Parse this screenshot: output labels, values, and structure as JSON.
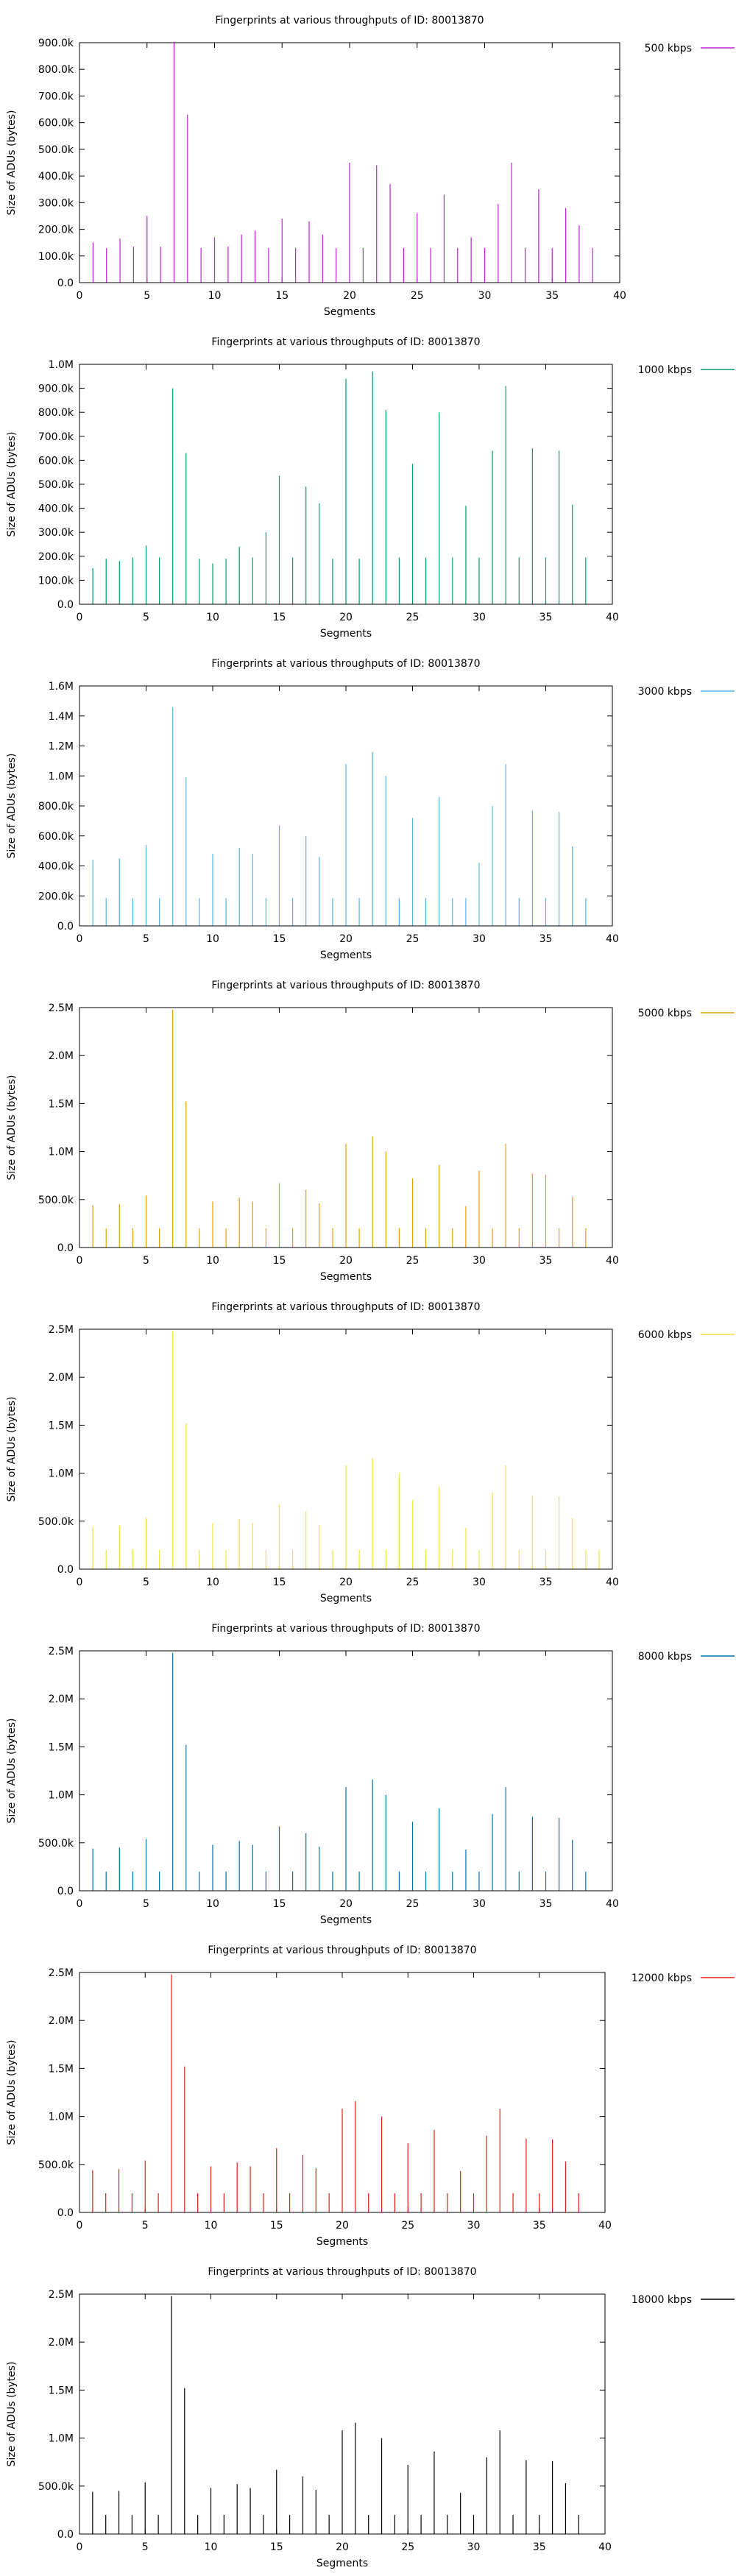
{
  "chart_data": [
    {
      "type": "impulse",
      "title": "Fingerprints at various throughputs of ID: 80013870",
      "xlabel": "Segments",
      "ylabel": "Size of ADUs (bytes)",
      "xlim": [
        0,
        40
      ],
      "xticks": [
        0,
        5,
        10,
        15,
        20,
        25,
        30,
        35,
        40
      ],
      "xtick_labels": [
        "0",
        "5",
        "10",
        "15",
        "20",
        "25",
        "30",
        "35",
        "40"
      ],
      "ylim": [
        0,
        900000
      ],
      "yticks": [
        0,
        100000,
        200000,
        300000,
        400000,
        500000,
        600000,
        700000,
        800000,
        900000
      ],
      "ytick_labels": [
        "0.0",
        "100.0k",
        "200.0k",
        "300.0k",
        "400.0k",
        "500.0k",
        "600.0k",
        "700.0k",
        "800.0k",
        "900.0k"
      ],
      "legend_position": "outside-right",
      "series": [
        {
          "name": "500 kbps",
          "color": "#c020d8",
          "x": [
            1,
            2,
            3,
            4,
            5,
            6,
            7,
            8,
            9,
            10,
            11,
            12,
            13,
            14,
            15,
            16,
            17,
            18,
            19,
            20,
            21,
            22,
            23,
            24,
            25,
            26,
            27,
            28,
            29,
            30,
            31,
            32,
            33,
            34,
            35,
            36,
            37,
            38
          ],
          "values": [
            150000,
            130000,
            165000,
            135000,
            250000,
            135000,
            900000,
            630000,
            130000,
            170000,
            135000,
            180000,
            195000,
            130000,
            240000,
            130000,
            230000,
            180000,
            130000,
            450000,
            130000,
            440000,
            370000,
            130000,
            260000,
            130000,
            330000,
            130000,
            170000,
            130000,
            295000,
            450000,
            130000,
            350000,
            130000,
            280000,
            215000,
            130000
          ]
        }
      ]
    },
    {
      "type": "impulse",
      "title": "Fingerprints at various throughputs of ID: 80013870",
      "xlabel": "Segments",
      "ylabel": "Size of ADUs (bytes)",
      "xlim": [
        0,
        40
      ],
      "xticks": [
        0,
        5,
        10,
        15,
        20,
        25,
        30,
        35,
        40
      ],
      "xtick_labels": [
        "0",
        "5",
        "10",
        "15",
        "20",
        "25",
        "30",
        "35",
        "40"
      ],
      "ylim": [
        0,
        1000000
      ],
      "yticks": [
        0,
        100000,
        200000,
        300000,
        400000,
        500000,
        600000,
        700000,
        800000,
        900000,
        1000000
      ],
      "ytick_labels": [
        "0.0",
        "100.0k",
        "200.0k",
        "300.0k",
        "400.0k",
        "500.0k",
        "600.0k",
        "700.0k",
        "800.0k",
        "900.0k",
        "1.0M"
      ],
      "legend_position": "outside-right",
      "series": [
        {
          "name": "1000 kbps",
          "color": "#009e73",
          "x": [
            1,
            2,
            3,
            4,
            5,
            6,
            7,
            8,
            9,
            10,
            11,
            12,
            13,
            14,
            15,
            16,
            17,
            18,
            19,
            20,
            21,
            22,
            23,
            24,
            25,
            26,
            27,
            28,
            29,
            30,
            31,
            32,
            33,
            34,
            35,
            36,
            37,
            38
          ],
          "values": [
            150000,
            190000,
            180000,
            195000,
            245000,
            195000,
            900000,
            630000,
            190000,
            170000,
            190000,
            240000,
            195000,
            300000,
            535000,
            195000,
            490000,
            420000,
            190000,
            940000,
            190000,
            970000,
            810000,
            195000,
            585000,
            195000,
            800000,
            195000,
            410000,
            195000,
            640000,
            910000,
            195000,
            650000,
            195000,
            640000,
            415000,
            195000
          ]
        }
      ]
    },
    {
      "type": "impulse",
      "title": "Fingerprints at various throughputs of ID: 80013870",
      "xlabel": "Segments",
      "ylabel": "Size of ADUs (bytes)",
      "xlim": [
        0,
        40
      ],
      "xticks": [
        0,
        5,
        10,
        15,
        20,
        25,
        30,
        35,
        40
      ],
      "xtick_labels": [
        "0",
        "5",
        "10",
        "15",
        "20",
        "25",
        "30",
        "35",
        "40"
      ],
      "ylim": [
        0,
        1600000
      ],
      "yticks": [
        0,
        200000,
        400000,
        600000,
        800000,
        1000000,
        1200000,
        1400000,
        1600000
      ],
      "ytick_labels": [
        "0.0",
        "200.0k",
        "400.0k",
        "600.0k",
        "800.0k",
        "1.0M",
        "1.2M",
        "1.4M",
        "1.6M"
      ],
      "legend_position": "outside-right",
      "series": [
        {
          "name": "3000 kbps",
          "color": "#56b4e9",
          "x": [
            1,
            2,
            3,
            4,
            5,
            6,
            7,
            8,
            9,
            10,
            11,
            12,
            13,
            14,
            15,
            16,
            17,
            18,
            19,
            20,
            21,
            22,
            23,
            24,
            25,
            26,
            27,
            28,
            29,
            30,
            31,
            32,
            33,
            34,
            35,
            36,
            37,
            38
          ],
          "values": [
            440000,
            185000,
            450000,
            185000,
            540000,
            185000,
            1460000,
            990000,
            185000,
            480000,
            185000,
            520000,
            480000,
            185000,
            670000,
            185000,
            600000,
            460000,
            185000,
            1080000,
            185000,
            1160000,
            1000000,
            185000,
            720000,
            185000,
            860000,
            185000,
            185000,
            420000,
            800000,
            1080000,
            185000,
            770000,
            185000,
            760000,
            530000,
            185000
          ]
        }
      ]
    },
    {
      "type": "impulse",
      "title": "Fingerprints at various throughputs of ID: 80013870",
      "xlabel": "Segments",
      "ylabel": "Size of ADUs (bytes)",
      "xlim": [
        0,
        40
      ],
      "xticks": [
        0,
        5,
        10,
        15,
        20,
        25,
        30,
        35,
        40
      ],
      "xtick_labels": [
        "0",
        "5",
        "10",
        "15",
        "20",
        "25",
        "30",
        "35",
        "40"
      ],
      "ylim": [
        0,
        2500000
      ],
      "yticks": [
        0,
        500000,
        1000000,
        1500000,
        2000000,
        2500000
      ],
      "ytick_labels": [
        "0.0",
        "500.0k",
        "1.0M",
        "1.5M",
        "2.0M",
        "2.5M"
      ],
      "legend_position": "outside-right",
      "series": [
        {
          "name": "5000 kbps",
          "color": "#e69f00",
          "x": [
            1,
            2,
            3,
            4,
            5,
            6,
            7,
            8,
            9,
            10,
            11,
            12,
            13,
            14,
            15,
            16,
            17,
            18,
            19,
            20,
            21,
            22,
            23,
            24,
            25,
            26,
            27,
            28,
            29,
            30,
            31,
            32,
            33,
            34,
            35,
            36,
            37,
            38
          ],
          "values": [
            440000,
            200000,
            450000,
            200000,
            540000,
            200000,
            2480000,
            1520000,
            200000,
            480000,
            200000,
            520000,
            480000,
            200000,
            670000,
            200000,
            600000,
            460000,
            200000,
            1080000,
            200000,
            1160000,
            1000000,
            200000,
            720000,
            200000,
            860000,
            200000,
            430000,
            800000,
            200000,
            1080000,
            200000,
            770000,
            760000,
            200000,
            530000,
            200000
          ]
        }
      ]
    },
    {
      "type": "impulse",
      "title": "Fingerprints at various throughputs of ID: 80013870",
      "xlabel": "Segments",
      "ylabel": "Size of ADUs (bytes)",
      "xlim": [
        0,
        40
      ],
      "xticks": [
        0,
        5,
        10,
        15,
        20,
        25,
        30,
        35,
        40
      ],
      "xtick_labels": [
        "0",
        "5",
        "10",
        "15",
        "20",
        "25",
        "30",
        "35",
        "40"
      ],
      "ylim": [
        0,
        2500000
      ],
      "yticks": [
        0,
        500000,
        1000000,
        1500000,
        2000000,
        2500000
      ],
      "ytick_labels": [
        "0.0",
        "500.0k",
        "1.0M",
        "1.5M",
        "2.0M",
        "2.5M"
      ],
      "legend_position": "outside-right",
      "series": [
        {
          "name": "6000 kbps",
          "color": "#f0e442",
          "x": [
            1,
            2,
            3,
            4,
            5,
            6,
            7,
            8,
            9,
            10,
            11,
            12,
            13,
            14,
            15,
            16,
            17,
            18,
            19,
            20,
            21,
            22,
            23,
            24,
            25,
            26,
            27,
            28,
            29,
            30,
            31,
            32,
            33,
            34,
            35,
            36,
            37,
            38,
            39
          ],
          "values": [
            440000,
            200000,
            450000,
            200000,
            540000,
            200000,
            2480000,
            1520000,
            200000,
            480000,
            200000,
            520000,
            480000,
            200000,
            670000,
            200000,
            600000,
            460000,
            200000,
            1080000,
            200000,
            1160000,
            200000,
            1000000,
            720000,
            200000,
            860000,
            200000,
            430000,
            200000,
            800000,
            1080000,
            200000,
            770000,
            200000,
            760000,
            530000,
            200000,
            200000
          ]
        }
      ]
    },
    {
      "type": "impulse",
      "title": "Fingerprints at various throughputs of ID: 80013870",
      "xlabel": "Segments",
      "ylabel": "Size of ADUs (bytes)",
      "xlim": [
        0,
        40
      ],
      "xticks": [
        0,
        5,
        10,
        15,
        20,
        25,
        30,
        35,
        40
      ],
      "xtick_labels": [
        "0",
        "5",
        "10",
        "15",
        "20",
        "25",
        "30",
        "35",
        "40"
      ],
      "ylim": [
        0,
        2500000
      ],
      "yticks": [
        0,
        500000,
        1000000,
        1500000,
        2000000,
        2500000
      ],
      "ytick_labels": [
        "0.0",
        "500.0k",
        "1.0M",
        "1.5M",
        "2.0M",
        "2.5M"
      ],
      "legend_position": "outside-right",
      "series": [
        {
          "name": "8000 kbps",
          "color": "#0072b2",
          "x": [
            1,
            2,
            3,
            4,
            5,
            6,
            7,
            8,
            9,
            10,
            11,
            12,
            13,
            14,
            15,
            16,
            17,
            18,
            19,
            20,
            21,
            22,
            23,
            24,
            25,
            26,
            27,
            28,
            29,
            30,
            31,
            32,
            33,
            34,
            35,
            36,
            37,
            38
          ],
          "values": [
            440000,
            200000,
            450000,
            200000,
            540000,
            200000,
            2480000,
            1520000,
            200000,
            480000,
            200000,
            520000,
            480000,
            200000,
            670000,
            200000,
            600000,
            460000,
            200000,
            1080000,
            200000,
            1160000,
            1000000,
            200000,
            720000,
            200000,
            860000,
            200000,
            430000,
            200000,
            800000,
            1080000,
            200000,
            770000,
            200000,
            760000,
            530000,
            200000
          ]
        }
      ]
    },
    {
      "type": "impulse",
      "title": "Fingerprints at various throughputs of ID: 80013870",
      "xlabel": "Segments",
      "ylabel": "Size of ADUs (bytes)",
      "xlim": [
        0,
        40
      ],
      "xticks": [
        0,
        5,
        10,
        15,
        20,
        25,
        30,
        35,
        40
      ],
      "xtick_labels": [
        "0",
        "5",
        "10",
        "15",
        "20",
        "25",
        "30",
        "35",
        "40"
      ],
      "ylim": [
        0,
        2500000
      ],
      "yticks": [
        0,
        500000,
        1000000,
        1500000,
        2000000,
        2500000
      ],
      "ytick_labels": [
        "0.0",
        "500.0k",
        "1.0M",
        "1.5M",
        "2.0M",
        "2.5M"
      ],
      "legend_position": "outside-right",
      "series": [
        {
          "name": "12000 kbps",
          "color": "#e51e10",
          "x": [
            1,
            2,
            3,
            4,
            5,
            6,
            7,
            8,
            9,
            10,
            11,
            12,
            13,
            14,
            15,
            16,
            17,
            18,
            19,
            20,
            21,
            22,
            23,
            24,
            25,
            26,
            27,
            28,
            29,
            30,
            31,
            32,
            33,
            34,
            35,
            36,
            37,
            38
          ],
          "values": [
            440000,
            200000,
            450000,
            200000,
            540000,
            200000,
            2480000,
            1520000,
            200000,
            480000,
            200000,
            520000,
            480000,
            200000,
            670000,
            200000,
            600000,
            460000,
            200000,
            1080000,
            1160000,
            200000,
            1000000,
            200000,
            720000,
            200000,
            860000,
            200000,
            430000,
            200000,
            800000,
            1080000,
            200000,
            770000,
            200000,
            760000,
            530000,
            200000
          ]
        }
      ]
    },
    {
      "type": "impulse",
      "title": "Fingerprints at various throughputs of ID: 80013870",
      "xlabel": "Segments",
      "ylabel": "Size of ADUs (bytes)",
      "xlim": [
        0,
        40
      ],
      "xticks": [
        0,
        5,
        10,
        15,
        20,
        25,
        30,
        35,
        40
      ],
      "xtick_labels": [
        "0",
        "5",
        "10",
        "15",
        "20",
        "25",
        "30",
        "35",
        "40"
      ],
      "ylim": [
        0,
        2500000
      ],
      "yticks": [
        0,
        500000,
        1000000,
        1500000,
        2000000,
        2500000
      ],
      "ytick_labels": [
        "0.0",
        "500.0k",
        "1.0M",
        "1.5M",
        "2.0M",
        "2.5M"
      ],
      "legend_position": "outside-right",
      "series": [
        {
          "name": "18000 kbps",
          "color": "#000000",
          "x": [
            1,
            2,
            3,
            4,
            5,
            6,
            7,
            8,
            9,
            10,
            11,
            12,
            13,
            14,
            15,
            16,
            17,
            18,
            19,
            20,
            21,
            22,
            23,
            24,
            25,
            26,
            27,
            28,
            29,
            30,
            31,
            32,
            33,
            34,
            35,
            36,
            37,
            38
          ],
          "values": [
            440000,
            200000,
            450000,
            200000,
            540000,
            200000,
            2480000,
            1520000,
            200000,
            480000,
            200000,
            520000,
            480000,
            200000,
            670000,
            200000,
            600000,
            460000,
            200000,
            1080000,
            1160000,
            200000,
            1000000,
            200000,
            720000,
            200000,
            860000,
            200000,
            430000,
            200000,
            800000,
            1080000,
            200000,
            770000,
            200000,
            760000,
            530000,
            200000
          ]
        }
      ]
    }
  ]
}
